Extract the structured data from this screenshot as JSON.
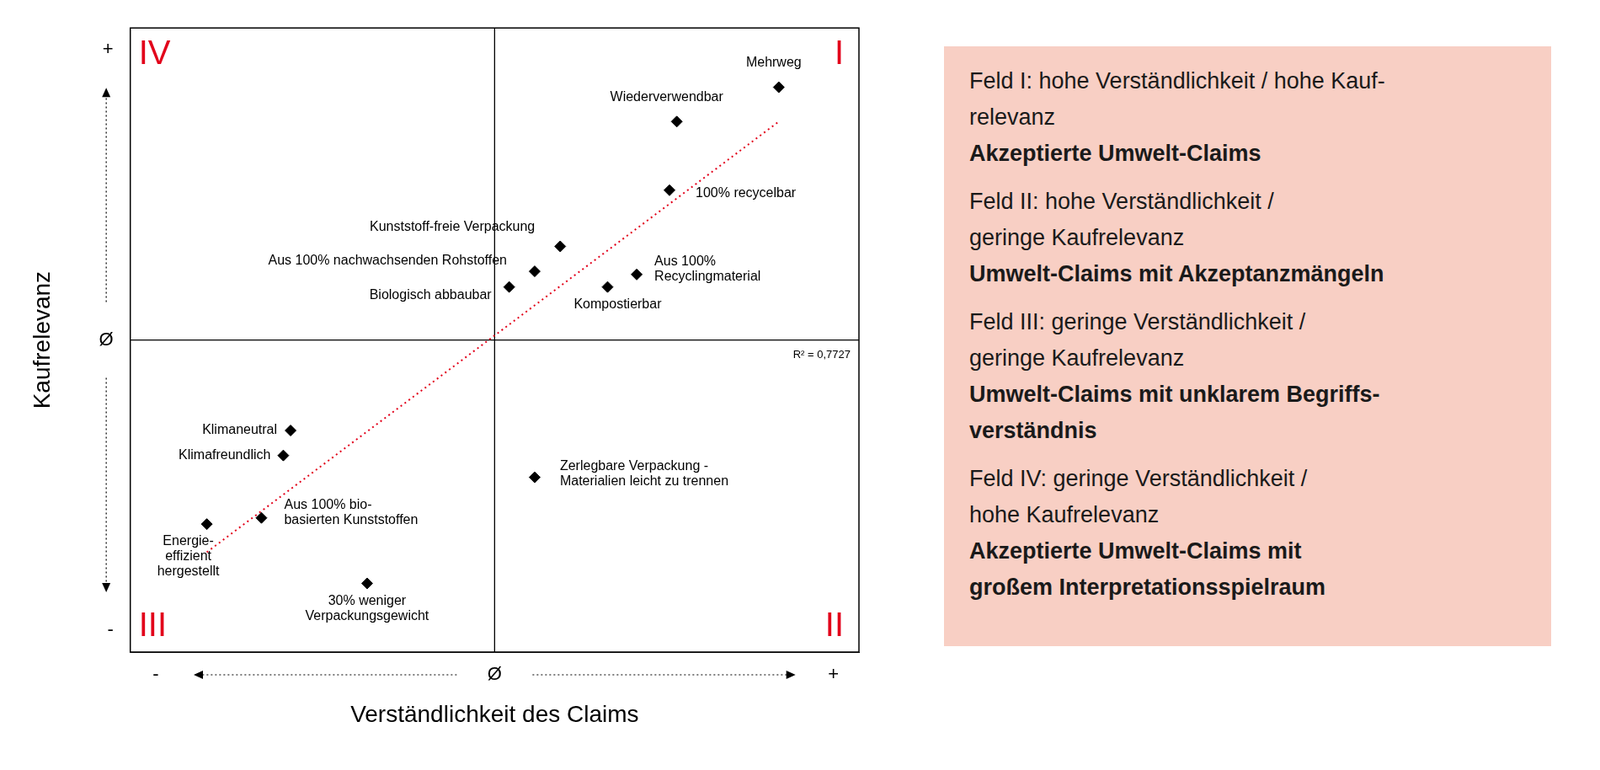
{
  "chart_data": {
    "type": "scatter",
    "x_label": "Verständlichkeit des Claims",
    "y_label": "Kaufrelevanz",
    "xlim": [
      -1,
      1
    ],
    "ylim": [
      -1,
      1
    ],
    "xticks": [
      {
        "value": -0.93,
        "label": "-"
      },
      {
        "value": 0,
        "label": "Ø"
      },
      {
        "value": 0.93,
        "label": "+"
      }
    ],
    "yticks": [
      {
        "value": -0.93,
        "label": "-"
      },
      {
        "value": 0,
        "label": "Ø"
      },
      {
        "value": 0.93,
        "label": "+"
      }
    ],
    "grid": false,
    "marker": "diamond",
    "color": "#000000",
    "points": [
      {
        "label": "Mehrweg",
        "x": 0.78,
        "y": 0.81
      },
      {
        "label": "Wiederverwendbar",
        "x": 0.5,
        "y": 0.7
      },
      {
        "label": "100% recycelbar",
        "x": 0.48,
        "y": 0.48
      },
      {
        "label": "Kunststoff-freie Verpackung",
        "x": 0.18,
        "y": 0.3
      },
      {
        "label": "Aus 100% nachwachsenden Rohstoffen",
        "x": 0.11,
        "y": 0.22
      },
      {
        "label": "Biologisch abbaubar",
        "x": 0.04,
        "y": 0.17
      },
      {
        "label": "Kompostierbar",
        "x": 0.31,
        "y": 0.17
      },
      {
        "label": "Aus 100%\nRecyclingmaterial",
        "x": 0.39,
        "y": 0.21
      },
      {
        "label": "Klimaneutral",
        "x": -0.56,
        "y": -0.29
      },
      {
        "label": "Klimafreundlich",
        "x": -0.58,
        "y": -0.37
      },
      {
        "label": "Energie-\neffizient\nhergestellt",
        "x": -0.79,
        "y": -0.59
      },
      {
        "label": "Aus 100% bio-\nbasierten Kunststoffen",
        "x": -0.64,
        "y": -0.57
      },
      {
        "label": "30% weniger\nVerpackungsgewicht",
        "x": -0.35,
        "y": -0.78
      },
      {
        "label": "Zerlegbare Verpackung -\nMaterialien leicht zu trennen",
        "x": 0.11,
        "y": -0.44
      }
    ],
    "quadrant_center": {
      "x": 0,
      "y": 0
    },
    "quadrant_labels": [
      "I",
      "II",
      "III",
      "IV"
    ],
    "quadrant_label_color": "#e2001a",
    "trendline": {
      "x": [
        -0.79,
        0.78
      ],
      "y": [
        -0.68,
        0.7
      ],
      "color": "#e2001a",
      "line_style": "dotted"
    },
    "annotations": [
      "R² = 0,7727"
    ]
  },
  "side_panel": {
    "color": "#f8cfc4",
    "fields": [
      {
        "heading": [
          "Feld I: hohe Verständlichkeit / hohe Kauf-",
          "relevanz"
        ],
        "title": [
          "Akzeptierte Umwelt-Claims"
        ]
      },
      {
        "heading": [
          "Feld II: hohe Verständlichkeit /",
          "geringe Kaufrelevanz"
        ],
        "title": [
          "Umwelt-Claims mit Akzeptanzmängeln"
        ]
      },
      {
        "heading": [
          "Feld III: geringe Verständlichkeit /",
          "geringe Kaufrelevanz"
        ],
        "title": [
          "Umwelt-Claims mit unklarem Begriffs-",
          "verständnis"
        ]
      },
      {
        "heading": [
          "Feld IV: geringe Verständlichkeit /",
          "hohe Kaufrelevanz"
        ],
        "title": [
          "Akzeptierte Umwelt-Claims mit",
          "großem Interpretationsspielraum"
        ]
      }
    ]
  }
}
